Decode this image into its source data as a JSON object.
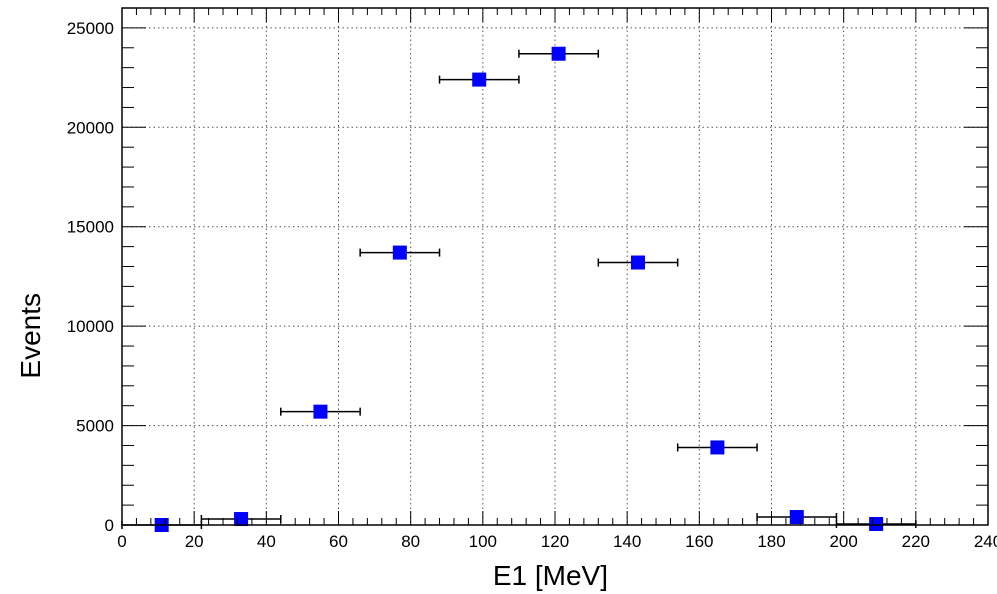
{
  "chart_data": {
    "type": "scatter",
    "title": "",
    "xlabel": "E1 [MeV]",
    "ylabel": "Events",
    "xlim": [
      0,
      240
    ],
    "ylim": [
      0,
      26000
    ],
    "xticks": [
      0,
      20,
      40,
      60,
      80,
      100,
      120,
      140,
      160,
      180,
      200,
      220,
      240
    ],
    "yticks": [
      0,
      5000,
      10000,
      15000,
      20000,
      25000
    ],
    "grid": true,
    "marker_color": "#0000ff",
    "series": [
      {
        "points": [
          {
            "x": 11,
            "y": 0,
            "xerr": 11
          },
          {
            "x": 33,
            "y": 300,
            "xerr": 11
          },
          {
            "x": 55,
            "y": 5700,
            "xerr": 11
          },
          {
            "x": 77,
            "y": 13700,
            "xerr": 11
          },
          {
            "x": 99,
            "y": 22400,
            "xerr": 11
          },
          {
            "x": 121,
            "y": 23700,
            "xerr": 11
          },
          {
            "x": 143,
            "y": 13200,
            "xerr": 11
          },
          {
            "x": 165,
            "y": 3900,
            "xerr": 11
          },
          {
            "x": 187,
            "y": 400,
            "xerr": 11
          },
          {
            "x": 209,
            "y": 50,
            "xerr": 11
          }
        ]
      }
    ]
  }
}
